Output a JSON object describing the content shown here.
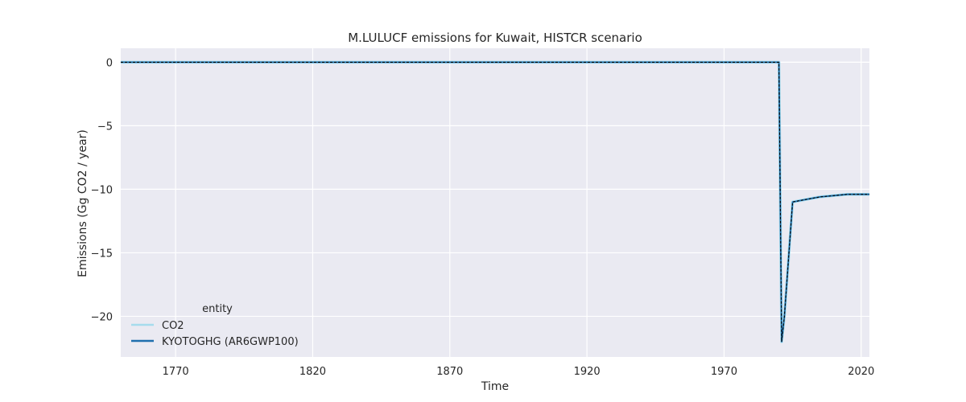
{
  "chart_data": {
    "type": "line",
    "title": "M.LULUCF emissions for Kuwait, HISTCR scenario",
    "xlabel": "Time",
    "ylabel": "Emissions (Gg CO2 / year)",
    "xlim": [
      1750,
      2023
    ],
    "ylim": [
      -23.2,
      1.1
    ],
    "xticks": [
      1770,
      1820,
      1870,
      1920,
      1970,
      2020
    ],
    "yticks": [
      0,
      -5,
      -10,
      -15,
      -20
    ],
    "grid": true,
    "legend": {
      "title": "entity",
      "placement": "lower-left"
    },
    "series": [
      {
        "name": "CO2",
        "color": "#a6dced",
        "style": "solid",
        "x": [
          1750,
          1990,
          1991,
          1992,
          1995,
          2000,
          2005,
          2010,
          2015,
          2016,
          2020,
          2023
        ],
        "y": [
          0,
          0,
          -22.0,
          -20.0,
          -11.0,
          -10.8,
          -10.6,
          -10.5,
          -10.4,
          -10.4,
          -10.4,
          -10.4
        ]
      },
      {
        "name": "KYOTOGHG (AR6GWP100)",
        "color": "#1f6fae",
        "style": "solid",
        "x": [
          1750,
          1990,
          1991,
          1992,
          1995,
          2000,
          2005,
          2010,
          2015,
          2016,
          2020,
          2023
        ],
        "y": [
          0,
          0,
          -22.0,
          -20.0,
          -11.0,
          -10.8,
          -10.6,
          -10.5,
          -10.4,
          -10.4,
          -10.4,
          -10.4
        ]
      }
    ],
    "overlay": {
      "color": "#000000",
      "style": "dashed",
      "x": [
        1750,
        1990,
        1991,
        1992,
        1995,
        2000,
        2005,
        2010,
        2015,
        2016,
        2020,
        2023
      ],
      "y": [
        0,
        0,
        -22.0,
        -20.0,
        -11.0,
        -10.8,
        -10.6,
        -10.5,
        -10.4,
        -10.4,
        -10.4,
        -10.4
      ]
    },
    "colors": {
      "plot_background": "#eaeaf2",
      "grid": "#ffffff"
    }
  }
}
